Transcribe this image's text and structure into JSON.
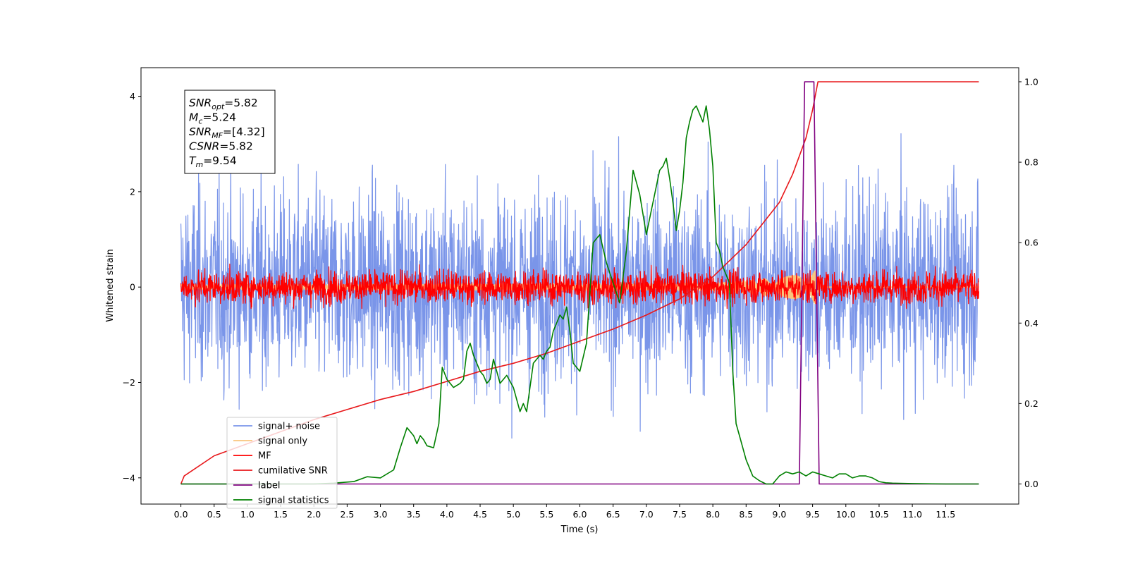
{
  "chart_data": {
    "type": "line",
    "title": "",
    "xlabel": "Time (s)",
    "ylabel": "Whitened strain",
    "y2label": "",
    "xlim": [
      -0.6,
      12.6
    ],
    "ylim": [
      -4.55,
      4.6
    ],
    "y2lim": [
      -0.05,
      1.035
    ],
    "xticks": [
      0.0,
      0.5,
      1.0,
      1.5,
      2.0,
      2.5,
      3.0,
      3.5,
      4.0,
      4.5,
      5.0,
      5.5,
      6.0,
      6.5,
      7.0,
      7.5,
      8.0,
      8.5,
      9.0,
      9.5,
      10.0,
      10.5,
      11.0,
      11.5
    ],
    "xtick_labels": [
      "0.0",
      "0.5",
      "1.0",
      "1.5",
      "2.0",
      "2.5",
      "3.0",
      "3.5",
      "4.0",
      "4.5",
      "5.0",
      "5.5",
      "6.0",
      "6.5",
      "7.0",
      "7.5",
      "8.0",
      "8.5",
      "9.0",
      "9.5",
      "10.0",
      "10.5",
      "11.0",
      "11.5"
    ],
    "yticks": [
      -4,
      -2,
      0,
      2,
      4
    ],
    "ytick_labels": [
      "−4",
      "−2",
      "0",
      "2",
      "4"
    ],
    "y2ticks": [
      0.0,
      0.2,
      0.4,
      0.6,
      0.8,
      1.0
    ],
    "y2tick_labels": [
      "0.0",
      "0.2",
      "0.4",
      "0.6",
      "0.8",
      "1.0"
    ],
    "grid": false,
    "legend_position": "bottom-left",
    "annotation": {
      "lines": [
        {
          "base": "SNR",
          "sub": "opt",
          "value": "=5.82"
        },
        {
          "base": "M",
          "sub": "c",
          "value": "=5.24"
        },
        {
          "base": "SNR",
          "sub": "MF",
          "value": "=[4.32]"
        },
        {
          "base": "CSNR",
          "sub": "",
          "value": "=5.82"
        },
        {
          "base": "T",
          "sub": "m",
          "value": "=9.54"
        }
      ]
    },
    "series": [
      {
        "name": "signal+ noise",
        "axis": "left",
        "color": "#7a95e9",
        "style": "noise",
        "x_start": 0.0,
        "x_end": 12.0,
        "amplitude": 1.0,
        "extremes_max": 4.15,
        "extremes_min": -4.1
      },
      {
        "name": "signal only",
        "axis": "left",
        "color": "#f9c57d",
        "style": "chirp",
        "x_start": 0.0,
        "x_end": 12.0,
        "envelope": [
          [
            0.0,
            0.05
          ],
          [
            8.0,
            0.08
          ],
          [
            9.0,
            0.2
          ],
          [
            9.4,
            0.3
          ],
          [
            9.54,
            0.35
          ],
          [
            9.6,
            0.0
          ],
          [
            12.0,
            0.0
          ]
        ]
      },
      {
        "name": "MF",
        "axis": "left",
        "color": "#ff0000",
        "style": "noise",
        "x_start": 0.0,
        "x_end": 12.0,
        "amplitude": 0.17,
        "extremes_max": 1.0,
        "extremes_min": -0.45
      },
      {
        "name": "cumilative SNR",
        "axis": "right",
        "color": "#e8181b",
        "style": "line",
        "x": [
          0.0,
          0.05,
          0.5,
          1.0,
          1.5,
          2.0,
          2.5,
          3.0,
          3.5,
          4.0,
          4.5,
          5.0,
          5.5,
          6.0,
          6.5,
          7.0,
          7.5,
          8.0,
          8.5,
          9.0,
          9.2,
          9.4,
          9.5,
          9.58,
          12.0
        ],
        "y": [
          0.0,
          0.02,
          0.07,
          0.1,
          0.13,
          0.16,
          0.185,
          0.21,
          0.23,
          0.255,
          0.28,
          0.3,
          0.325,
          0.355,
          0.385,
          0.42,
          0.46,
          0.515,
          0.595,
          0.7,
          0.77,
          0.86,
          0.93,
          1.0,
          1.0
        ]
      },
      {
        "name": "label",
        "axis": "right",
        "color": "#800080",
        "style": "line",
        "x": [
          0.0,
          9.3,
          9.38,
          9.52,
          9.6,
          12.0
        ],
        "y": [
          0.0,
          0.0,
          1.0,
          1.0,
          0.0,
          0.0
        ]
      },
      {
        "name": "signal statistics",
        "axis": "right",
        "color": "#008000",
        "style": "line",
        "x": [
          0.0,
          0.5,
          1.0,
          1.5,
          2.0,
          2.3,
          2.6,
          2.8,
          3.0,
          3.2,
          3.3,
          3.4,
          3.5,
          3.55,
          3.6,
          3.65,
          3.7,
          3.8,
          3.88,
          3.93,
          4.0,
          4.1,
          4.2,
          4.25,
          4.3,
          4.35,
          4.4,
          4.5,
          4.55,
          4.6,
          4.65,
          4.7,
          4.8,
          4.9,
          5.0,
          5.1,
          5.15,
          5.2,
          5.3,
          5.4,
          5.45,
          5.5,
          5.55,
          5.6,
          5.7,
          5.75,
          5.8,
          5.85,
          5.9,
          6.0,
          6.1,
          6.2,
          6.3,
          6.4,
          6.5,
          6.6,
          6.7,
          6.8,
          6.9,
          7.0,
          7.05,
          7.1,
          7.2,
          7.25,
          7.3,
          7.35,
          7.4,
          7.45,
          7.5,
          7.55,
          7.6,
          7.65,
          7.7,
          7.75,
          7.8,
          7.85,
          7.9,
          7.95,
          8.0,
          8.05,
          8.1,
          8.15,
          8.2,
          8.25,
          8.3,
          8.35,
          8.4,
          8.5,
          8.6,
          8.7,
          8.8,
          8.9,
          9.0,
          9.1,
          9.2,
          9.3,
          9.4,
          9.5,
          9.6,
          9.7,
          9.8,
          9.9,
          10.0,
          10.1,
          10.2,
          10.3,
          10.4,
          10.5,
          10.6,
          10.7,
          11.0,
          11.5,
          12.0
        ],
        "y": [
          0.0,
          0.0,
          0.0,
          0.0,
          0.0,
          0.002,
          0.006,
          0.018,
          0.015,
          0.035,
          0.09,
          0.14,
          0.12,
          0.1,
          0.12,
          0.11,
          0.095,
          0.09,
          0.15,
          0.29,
          0.26,
          0.24,
          0.25,
          0.26,
          0.33,
          0.35,
          0.32,
          0.28,
          0.27,
          0.25,
          0.26,
          0.31,
          0.25,
          0.27,
          0.24,
          0.18,
          0.2,
          0.18,
          0.3,
          0.32,
          0.31,
          0.33,
          0.34,
          0.38,
          0.42,
          0.41,
          0.44,
          0.38,
          0.3,
          0.28,
          0.35,
          0.6,
          0.62,
          0.55,
          0.5,
          0.45,
          0.58,
          0.78,
          0.72,
          0.62,
          0.66,
          0.7,
          0.78,
          0.79,
          0.81,
          0.76,
          0.7,
          0.63,
          0.68,
          0.75,
          0.86,
          0.9,
          0.93,
          0.94,
          0.92,
          0.9,
          0.94,
          0.88,
          0.79,
          0.6,
          0.58,
          0.54,
          0.52,
          0.5,
          0.28,
          0.15,
          0.12,
          0.06,
          0.02,
          0.008,
          0.0,
          0.0,
          0.02,
          0.03,
          0.025,
          0.03,
          0.02,
          0.03,
          0.025,
          0.02,
          0.015,
          0.025,
          0.025,
          0.015,
          0.02,
          0.02,
          0.015,
          0.006,
          0.003,
          0.002,
          0.001,
          0.0,
          0.0
        ]
      }
    ]
  }
}
